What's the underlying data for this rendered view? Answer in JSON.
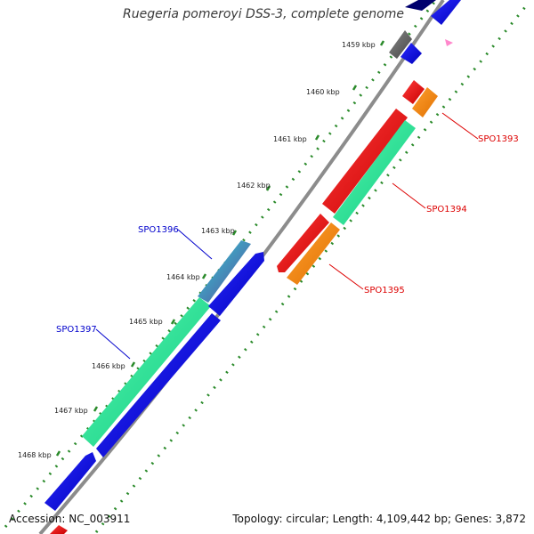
{
  "title": "Ruegeria pomeroyi DSS-3, complete genome",
  "footer": {
    "accession": "Accession: NC_003911",
    "summary": "Topology: circular; Length: 4,109,442 bp; Genes: 3,872"
  },
  "kbp_labels": [
    "1459 kbp",
    "1460 kbp",
    "1461 kbp",
    "1462 kbp",
    "1463 kbp",
    "1464 kbp",
    "1465 kbp",
    "1466 kbp",
    "1467 kbp",
    "1468 kbp"
  ],
  "gene_labels": [
    "SPO1393",
    "SPO1394",
    "SPO1395",
    "SPO1396",
    "SPO1397"
  ],
  "colors": {
    "red": "#ee0000",
    "orange": "#ff8c00",
    "green": "#22ee99",
    "blue": "#0000ee",
    "navy": "#00006e",
    "teal": "#20b2aa",
    "gray": "#666666",
    "backbone": "#8c8c8c",
    "ticks": "#2a8a2a",
    "label_red": "#dd0000",
    "label_blue": "#0000cc",
    "pink": "#ff88cc"
  }
}
